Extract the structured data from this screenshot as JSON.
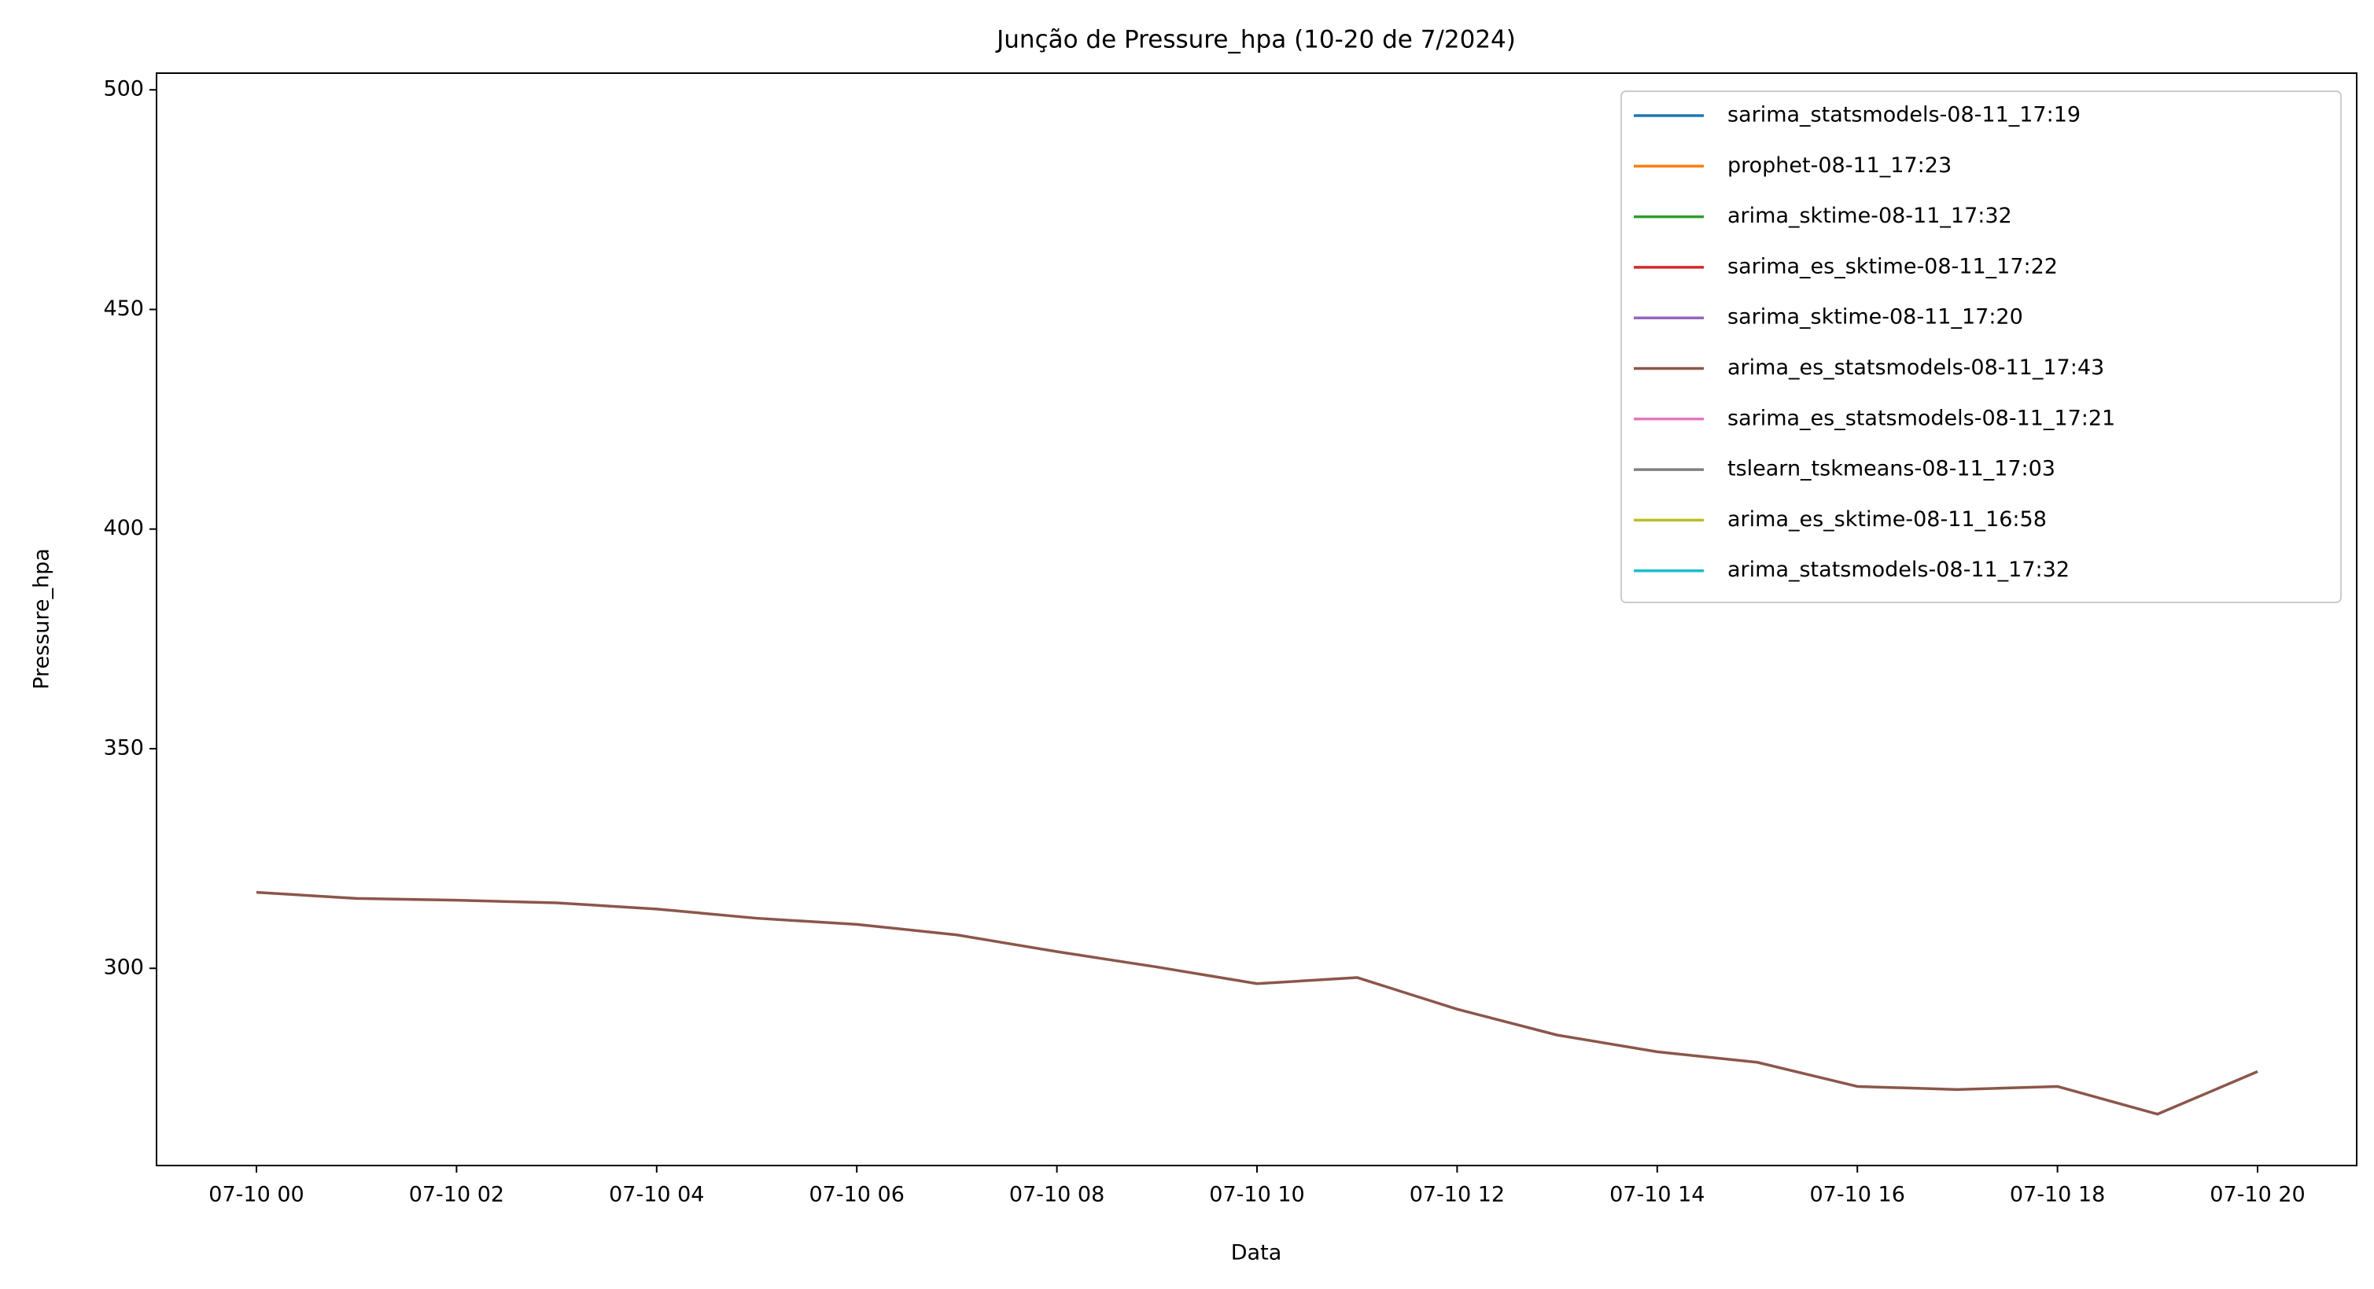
{
  "chart_data": {
    "type": "line",
    "title": "Junção de Pressure_hpa (10-20 de 7/2024)",
    "x_label": "Data",
    "y_label": "Pressure_hpa",
    "categories": [
      "07-10 00",
      null,
      "07-10 02",
      null,
      "07-10 04",
      null,
      "07-10 06",
      null,
      "07-10 08",
      null,
      "07-10 10",
      null,
      "07-10 12",
      null,
      "07-10 14",
      null,
      "07-10 16",
      null,
      "07-10 18",
      null,
      "07-10 20"
    ],
    "series": [
      {
        "name": "sarima_statsmodels-08-11_17:19",
        "color": "#1f77b4",
        "values": [
          null,
          null,
          null,
          null,
          null,
          null,
          null,
          null,
          null,
          null,
          null,
          null,
          null,
          null,
          null,
          null,
          null,
          null,
          null,
          null,
          null
        ]
      },
      {
        "name": "prophet-08-11_17:23",
        "color": "#ff7f0e",
        "values": [
          null,
          null,
          null,
          null,
          null,
          null,
          null,
          null,
          null,
          null,
          null,
          null,
          null,
          null,
          null,
          null,
          null,
          null,
          null,
          null,
          null
        ]
      },
      {
        "name": "arima_sktime-08-11_17:32",
        "color": "#2ca02c",
        "values": [
          null,
          null,
          null,
          null,
          null,
          null,
          null,
          null,
          null,
          null,
          null,
          null,
          null,
          null,
          null,
          null,
          null,
          null,
          null,
          null,
          null
        ]
      },
      {
        "name": "sarima_es_sktime-08-11_17:22",
        "color": "#d62728",
        "values": [
          null,
          null,
          null,
          null,
          null,
          null,
          null,
          null,
          null,
          null,
          null,
          null,
          null,
          null,
          null,
          null,
          null,
          null,
          null,
          null,
          null
        ]
      },
      {
        "name": "sarima_sktime-08-11_17:20",
        "color": "#9467bd",
        "values": [
          null,
          null,
          null,
          null,
          null,
          null,
          null,
          null,
          null,
          null,
          null,
          null,
          null,
          null,
          null,
          null,
          null,
          null,
          null,
          null,
          null
        ]
      },
      {
        "name": "arima_es_statsmodels-08-11_17:43",
        "color": "#8c564b",
        "values": [
          317.3,
          315.9,
          315.5,
          314.9,
          313.5,
          311.4,
          310.0,
          307.6,
          303.8,
          300.3,
          296.5,
          297.9,
          290.7,
          284.8,
          281.0,
          278.6,
          273.1,
          272.4,
          273.1,
          266.8,
          276.5
        ]
      },
      {
        "name": "sarima_es_statsmodels-08-11_17:21",
        "color": "#e377c2",
        "values": [
          null,
          null,
          null,
          null,
          null,
          null,
          null,
          null,
          null,
          null,
          null,
          null,
          null,
          null,
          null,
          null,
          null,
          null,
          null,
          null,
          null
        ]
      },
      {
        "name": "tslearn_tskmeans-08-11_17:03",
        "color": "#7f7f7f",
        "values": [
          null,
          null,
          null,
          null,
          null,
          null,
          null,
          null,
          null,
          null,
          null,
          null,
          null,
          null,
          null,
          null,
          null,
          null,
          null,
          null,
          null
        ]
      },
      {
        "name": "arima_es_sktime-08-11_16:58",
        "color": "#bcbd22",
        "values": [
          null,
          null,
          null,
          null,
          null,
          null,
          null,
          null,
          null,
          null,
          null,
          null,
          null,
          null,
          null,
          null,
          null,
          null,
          null,
          null,
          null
        ]
      },
      {
        "name": "arima_statsmodels-08-11_17:32",
        "color": "#17becf",
        "values": [
          null,
          null,
          null,
          null,
          null,
          null,
          null,
          null,
          null,
          null,
          null,
          null,
          null,
          null,
          null,
          null,
          null,
          null,
          null,
          null,
          null
        ]
      }
    ],
    "ylim": [
      255.1,
      503.8
    ],
    "yticks": [
      300,
      350,
      400,
      450,
      500
    ],
    "grid": false,
    "legend": "upper right"
  }
}
